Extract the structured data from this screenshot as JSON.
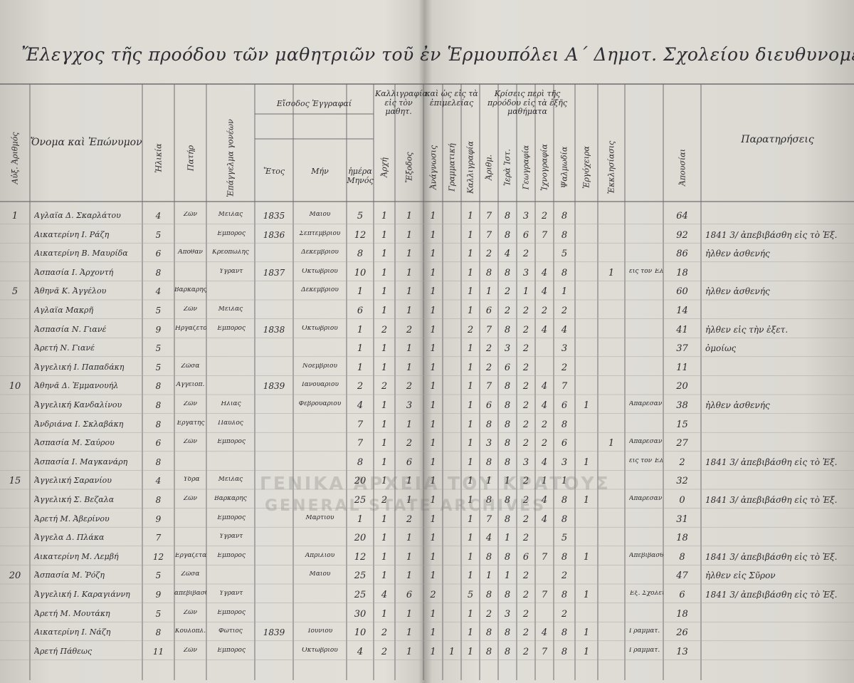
{
  "title": "Ἔλεγχος τῆς προόδου τῶν μαθητριῶν τοῦ ἐν Ἑρμουπόλει Α΄ Δημοτ. Σχολείου διευθυνομένου παρὰ τῆς διδασκαλίσσης",
  "watermark": [
    "ΓΕΝΙΚΑ ΑΡΧΕΙΑ ΤΟΥ ΚΡΑΤΟΥΣ",
    "GENERAL STATE ARCHIVES"
  ],
  "group_headers": [
    "Εἴσοδος Ἐγγραφαί",
    "Καλλιγραφία εἰς τὸν μαθητ.",
    "καὶ ὡς εἰς τὰ ἐπιμελείας",
    "Κρίσεις περὶ τῆς προόδου εἰς τὰ ἐξῆς μαθήματα"
  ],
  "columns": [
    "Αὐξ. Ἀριθμός",
    "Ὄνομα καὶ Ἐπώνυμον",
    "Ἡλικία",
    "Πατήρ",
    "Ἐπάγγελμα γονέων",
    "Ἔτος",
    "Μήν",
    "ἡμέρα Μηνός",
    "Ἀρχή",
    "Ἔξοδος",
    "Ἀνάγνωσις",
    "Γραμματική",
    "Καλλιγραφία",
    "Ἀριθμ.",
    "Ἱερὰ Ἱστ.",
    "Γεωγραφία",
    "Ἰχνογραφία",
    "Ψαλμωδία",
    "Ἐργόχειρα",
    "Ἐκκλησίασις",
    null,
    "Ἀπουσίαι",
    "Παρατηρήσεις"
  ],
  "rows": [
    [
      "1",
      "Αγλαΐα Δ. Σκαρλάτου",
      "4",
      "Ζῶν",
      "Μεῖλας",
      "1835",
      "Μαΐου",
      "5",
      "1",
      "1",
      "1",
      null,
      "1",
      "7",
      "8",
      "3",
      "2",
      "8",
      null,
      null,
      null,
      "64",
      null
    ],
    [
      null,
      "Αικατερίνη Ι. Ράζη",
      "5",
      null,
      "Ἔμπορος",
      "1836",
      "Σεπτεμβρίου",
      "12",
      "1",
      "1",
      "1",
      null,
      "1",
      "7",
      "8",
      "6",
      "7",
      "8",
      null,
      null,
      null,
      "92",
      "1841 3/ ἀπεβιβάσθη εἰς τὸ Ἐξ."
    ],
    [
      null,
      "Αικατερίνη Β. Μαυρίδα",
      "6",
      "Ἀπόθαν",
      "Κρεοπώλης",
      null,
      "Δεκεμβρίου",
      "8",
      "1",
      "1",
      "1",
      null,
      "1",
      "2",
      "4",
      "2",
      null,
      "5",
      null,
      null,
      null,
      "86",
      "ἦλθεν ἀσθενής"
    ],
    [
      null,
      "Ἀσπασία Ι. Ἀρχοντή",
      "8",
      null,
      "Ὑγραντ",
      "1837",
      "Ὀκτωβρίου",
      "10",
      "1",
      "1",
      "1",
      null,
      "1",
      "8",
      "8",
      "3",
      "4",
      "8",
      null,
      "1",
      "εἰς τὸν Ἐλλην.",
      "18",
      null
    ],
    [
      "5",
      "Ἀθηνᾶ Κ. Ἀγγέλου",
      "4",
      "Βαρκάρης",
      null,
      null,
      "Δεκεμβρίου",
      "1",
      "1",
      "1",
      "1",
      null,
      "1",
      "1",
      "2",
      "1",
      "4",
      "1",
      null,
      null,
      null,
      "60",
      "ἦλθεν ἀσθενής"
    ],
    [
      null,
      "Αγλαΐα Μακρῆ",
      "5",
      "Ζῶν",
      "Μεῖλας",
      null,
      null,
      "6",
      "1",
      "1",
      "1",
      null,
      "1",
      "6",
      "2",
      "2",
      "2",
      "2",
      null,
      null,
      null,
      "14",
      null
    ],
    [
      null,
      "Ἀσπασία Ν. Γιανέ",
      "9",
      "Ἠργάζετο",
      "Ἔμπορος",
      "1838",
      "Ὀκτωβρίου",
      "1",
      "2",
      "2",
      "1",
      null,
      "2",
      "7",
      "8",
      "2",
      "4",
      "4",
      null,
      null,
      null,
      "41",
      "ἦλθεν εἰς τὴν ἐξετ."
    ],
    [
      null,
      "Ἀρετή Ν. Γιανέ",
      "5",
      null,
      null,
      null,
      null,
      "1",
      "1",
      "1",
      "1",
      null,
      "1",
      "2",
      "3",
      "2",
      null,
      "3",
      null,
      null,
      null,
      "37",
      "ὁμοίως"
    ],
    [
      null,
      "Ἀγγελική Ι. Παπαδάκη",
      "5",
      "Ζῶσα",
      null,
      null,
      "Νοεμβρίου",
      "1",
      "1",
      "1",
      "1",
      null,
      "1",
      "2",
      "6",
      "2",
      null,
      "2",
      null,
      null,
      null,
      "11",
      null
    ],
    [
      "10",
      "Ἀθηνᾶ Δ. Ἐμμανουήλ",
      "8",
      "Ἀγγειοπ.",
      null,
      "1839",
      "Ἰανουαρίου",
      "2",
      "2",
      "2",
      "1",
      null,
      "1",
      "7",
      "8",
      "2",
      "4",
      "7",
      null,
      null,
      null,
      "20",
      null
    ],
    [
      null,
      "Ἀγγελική Κανδαλίνου",
      "8",
      "Ζῶν",
      "Ἠλίας",
      null,
      "Φεβρουαρίου",
      "4",
      "1",
      "3",
      "1",
      null,
      "1",
      "6",
      "8",
      "2",
      "4",
      "6",
      "1",
      null,
      "Ἀπάρεσαν",
      "38",
      "ἦλθεν ἀσθενής"
    ],
    [
      null,
      "Ἀνδριάνα Ι. Σκλαβάκη",
      "8",
      "Ἐργάτης",
      "Παῦλος",
      null,
      null,
      "7",
      "1",
      "1",
      "1",
      null,
      "1",
      "8",
      "8",
      "2",
      "2",
      "8",
      null,
      null,
      null,
      "15",
      null
    ],
    [
      null,
      "Ἀσπασία Μ. Σαύρου",
      "6",
      "Ζῶν",
      "Ἔμπορος",
      null,
      null,
      "7",
      "1",
      "2",
      "1",
      null,
      "1",
      "3",
      "8",
      "2",
      "2",
      "6",
      null,
      "1",
      "Ἀπάρεσαν",
      "27",
      null
    ],
    [
      null,
      "Ἀσπασία Ι. Μαγκανάρη",
      "8",
      null,
      null,
      null,
      null,
      "8",
      "1",
      "6",
      "1",
      null,
      "1",
      "8",
      "8",
      "3",
      "4",
      "3",
      "1",
      null,
      "εἰς τὸν Ἐλλην.",
      "2",
      "1841 3/ ἀπεβιβάσθη εἰς τὸ Ἐξ."
    ],
    [
      "15",
      "Ἀγγελική Σαρανίου",
      "4",
      "Ὕδρα",
      "Μεῖλας",
      null,
      null,
      "20",
      "1",
      "1",
      "1",
      null,
      "1",
      "1",
      "1",
      "2",
      "1",
      "1",
      null,
      null,
      null,
      "32",
      null
    ],
    [
      null,
      "Ἀγγελική Σ. Βεζαλα",
      "8",
      "Ζῶν",
      "Βαρκάρης",
      null,
      null,
      "25",
      "2",
      "1",
      "1",
      null,
      "1",
      "8",
      "8",
      "2",
      "4",
      "8",
      "1",
      null,
      "Ἀπάρεσαν",
      "0",
      "1841 3/ ἀπεβιβάσθη εἰς τὸ Ἐξ."
    ],
    [
      null,
      "Ἀρετή Μ. Ἀβερίνου",
      "9",
      null,
      "Ἔμπορος",
      null,
      "Μαρτίου",
      "1",
      "1",
      "2",
      "1",
      null,
      "1",
      "7",
      "8",
      "2",
      "4",
      "8",
      null,
      null,
      null,
      "31",
      null
    ],
    [
      null,
      "Ἀγγελα Δ. Πλάκα",
      "7",
      null,
      "Ὑγραντ",
      null,
      null,
      "20",
      "1",
      "1",
      "1",
      null,
      "1",
      "4",
      "1",
      "2",
      null,
      "5",
      null,
      null,
      null,
      "18",
      null
    ],
    [
      null,
      "Αικατερίνη Μ. Λεμβή",
      "12",
      "Ἐργάζεται",
      "Ἔμπορος",
      null,
      "Ἀπριλίου",
      "12",
      "1",
      "1",
      "1",
      null,
      "1",
      "8",
      "8",
      "6",
      "7",
      "8",
      "1",
      null,
      "Ἀπεβιβάσθη",
      "8",
      "1841 3/ ἀπεβιβάσθη εἰς τὸ Ἐξ."
    ],
    [
      "20",
      "Ἀσπασία Μ. Ῥόζη",
      "5",
      "Ζῶσα",
      null,
      null,
      "Μαΐου",
      "25",
      "1",
      "1",
      "1",
      null,
      "1",
      "1",
      "1",
      "2",
      null,
      "2",
      null,
      null,
      null,
      "47",
      "ἦλθεν εἰς Σῦρον"
    ],
    [
      null,
      "Ἀγγελική Ι. Καραγιάννη",
      "9",
      "ἀπεβιβάσθη",
      "Ὑγραντ",
      null,
      null,
      "25",
      "4",
      "6",
      "2",
      null,
      "5",
      "8",
      "8",
      "2",
      "7",
      "8",
      "1",
      null,
      "Ἐξ. Σχολεῖον",
      "6",
      "1841 3/ ἀπεβιβάσθη εἰς τὸ Ἐξ."
    ],
    [
      null,
      "Ἀρετή Μ. Μουτάκη",
      "5",
      "Ζῶν",
      "Ἔμπορος",
      null,
      null,
      "30",
      "1",
      "1",
      "1",
      null,
      "1",
      "2",
      "3",
      "2",
      null,
      "2",
      null,
      null,
      null,
      "18",
      null
    ],
    [
      null,
      "Αικατερίνη Ι. Νάζη",
      "8",
      "Κουλοπλ.",
      "Φώτιος",
      "1839",
      "Ἰουνίου",
      "10",
      "2",
      "1",
      "1",
      null,
      "1",
      "8",
      "8",
      "2",
      "4",
      "8",
      "1",
      null,
      "Γραμματ.",
      "26",
      null
    ],
    [
      null,
      "Ἀρετή Πάθεως",
      "11",
      "Ζῶν",
      "Ἔμπορος",
      null,
      "Ὀκτωβρίου",
      "4",
      "2",
      "1",
      "1",
      "1",
      "1",
      "8",
      "8",
      "2",
      "7",
      "8",
      "1",
      null,
      "Γραμματ.",
      "13",
      null
    ]
  ]
}
